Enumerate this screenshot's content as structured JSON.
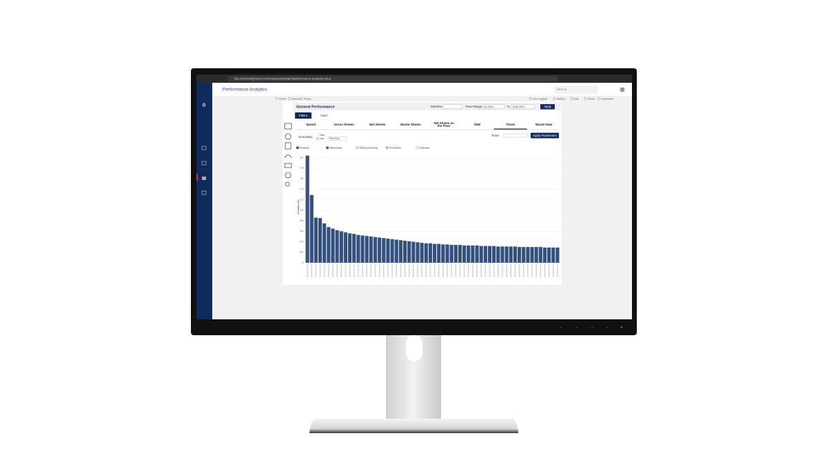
{
  "browser": {
    "url": "tba-community.force.com/customerportal/s/performance-analytics-plus"
  },
  "header": {
    "title": "Performance Analytics",
    "search": "Search"
  },
  "toolbar": {
    "left": [
      "Reset",
      "Refresh",
      "Pause"
    ],
    "right": [
      "Use Original",
      "Metrics",
      "Edit",
      "Share",
      "Download"
    ]
  },
  "panel": {
    "title": "General Performance",
    "machine_label": "Machine",
    "time_range_label": "Time Range",
    "from": "6-5-2021",
    "to_label": "to",
    "to": "6-05-2021",
    "apply": "Apply",
    "filters": "Filters",
    "clear": "Clear",
    "tabs": [
      "Speed",
      "Gross Sheets",
      "Net Sheets",
      "Waste Sheets",
      "Net Sheets on the Floor",
      "OEE",
      "Times",
      "Waste Rate"
    ],
    "active_tab": "Times",
    "granularity_label": "Granularity",
    "time_label": "Time",
    "job_label": "Job",
    "granularity_select": "Print Run",
    "times_label": "Times",
    "apply_parameters": "Apply Parameters"
  },
  "chart_data": {
    "type": "bar",
    "y_label": "Duration (h)",
    "legend": [
      {
        "name": "Auxiliary",
        "color": "#2e4a7d"
      },
      {
        "name": "Makeready",
        "color": "#3c5a8f"
      },
      {
        "name": "Otherprocessing",
        "color": "#d9d9d9"
      },
      {
        "name": "Production",
        "color": "#9cc3e6"
      },
      {
        "name": "Unknown",
        "color": "#f2f2f2"
      }
    ],
    "values": [
      2.04,
      1.29,
      0.86,
      0.85,
      0.75,
      0.68,
      0.65,
      0.62,
      0.6,
      0.58,
      0.56,
      0.55,
      0.53,
      0.52,
      0.51,
      0.5,
      0.49,
      0.48,
      0.47,
      0.46,
      0.45,
      0.44,
      0.43,
      0.42,
      0.41,
      0.4,
      0.39,
      0.38,
      0.37,
      0.37,
      0.36,
      0.36,
      0.35,
      0.35,
      0.34,
      0.34,
      0.34,
      0.33,
      0.33,
      0.33,
      0.33,
      0.32,
      0.32,
      0.32,
      0.32,
      0.31,
      0.31,
      0.31,
      0.31,
      0.31,
      0.3,
      0.3,
      0.3,
      0.3,
      0.3,
      0.3,
      0.29,
      0.29,
      0.29,
      0.29
    ],
    "color": "#34507f",
    "ylim": [
      0,
      2.1
    ],
    "yticks": [
      0,
      0.2,
      0.4,
      0.6,
      0.8,
      {
        "value": 1,
        "label": "1.0"
      },
      1.2,
      1.4,
      1.6,
      1.8,
      {
        "value": 2,
        "label": "2.0"
      }
    ],
    "grid": true
  }
}
